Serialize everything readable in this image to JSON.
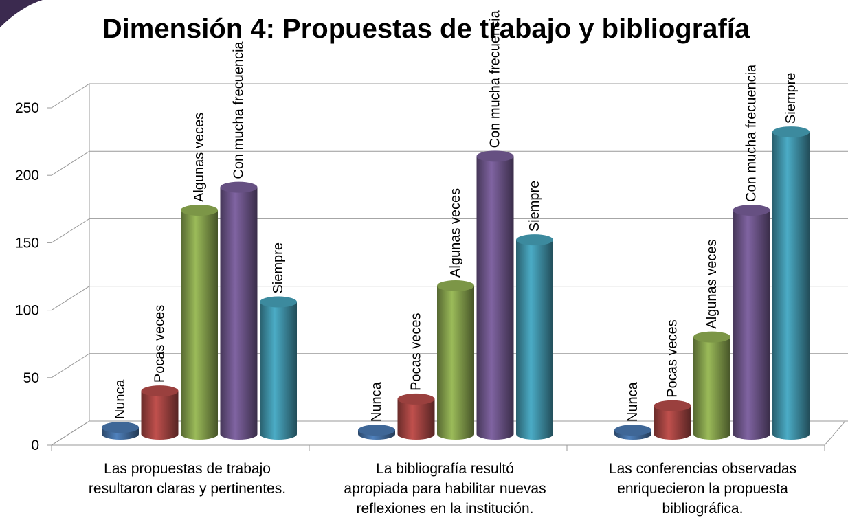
{
  "chart_data": {
    "type": "bar3d",
    "title": "Dimensión 4: Propuestas de trabajo y bibliografía",
    "categories": [
      "Las propuestas de trabajo resultaron claras y pertinentes.",
      "La bibliografía resultó apropiada para habilitar nuevas reflexiones en la institución.",
      "Las conferencias observadas enriquecieron la propuesta bibliográfica."
    ],
    "series": [
      {
        "name": "Nunca",
        "color": "#4f81bd",
        "values": [
          5,
          3,
          3
        ]
      },
      {
        "name": "Pocas veces",
        "color": "#c0504d",
        "values": [
          32,
          26,
          21
        ]
      },
      {
        "name": "Algunas veces",
        "color": "#9bbb59",
        "values": [
          166,
          110,
          72
        ]
      },
      {
        "name": "Con mucha frecuencia",
        "color": "#8064a2",
        "values": [
          183,
          206,
          166
        ]
      },
      {
        "name": "Siempre",
        "color": "#4bacc6",
        "values": [
          98,
          144,
          224
        ]
      }
    ],
    "ylim": [
      0,
      250
    ],
    "yticks": [
      0,
      50,
      100,
      150,
      200,
      250
    ],
    "grid": true
  }
}
